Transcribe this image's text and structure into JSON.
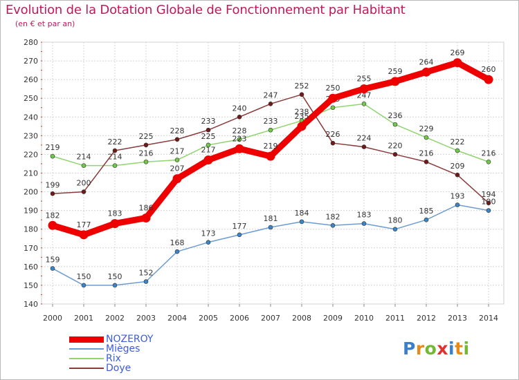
{
  "chart_data": {
    "type": "line",
    "title": "Evolution de la Dotation Globale de Fonctionnement par Habitant",
    "subtitle": "(en € et par an)",
    "x": [
      "2000",
      "2001",
      "2002",
      "2003",
      "2004",
      "2005",
      "2006",
      "2007",
      "2008",
      "2009",
      "2010",
      "2011",
      "2012",
      "2013",
      "2014"
    ],
    "yticks": [
      "140",
      "150",
      "160",
      "170",
      "180",
      "190",
      "200",
      "210",
      "220",
      "230",
      "240",
      "250",
      "260",
      "270",
      "280"
    ],
    "ylim": [
      140,
      280
    ],
    "grid": true,
    "legend_position": "bottom-left",
    "series": [
      {
        "name": "Mièges",
        "color": "#6b9bd2",
        "marker": "#3a84c8",
        "values": [
          159,
          150,
          150,
          152,
          168,
          173,
          177,
          181,
          184,
          182,
          183,
          180,
          185,
          193,
          190
        ],
        "labels": [
          "159",
          "150",
          "150",
          "152",
          "168",
          "173",
          "177",
          "181",
          "184",
          "182",
          "183",
          "180",
          "185",
          "193",
          "190"
        ]
      },
      {
        "name": "Rix",
        "color": "#90d470",
        "marker": "#72c84a",
        "values": [
          219,
          214,
          214,
          216,
          217,
          225,
          228,
          233,
          238,
          245,
          247,
          236,
          229,
          222,
          216
        ],
        "labels": [
          "219",
          "214",
          "214",
          "216",
          "217",
          "225",
          "228",
          "233",
          "238",
          "245",
          "247",
          "236",
          "229",
          "222",
          "216"
        ]
      },
      {
        "name": "Doye",
        "color": "#8b3a3a",
        "marker": "#6e1a1a",
        "values": [
          199,
          200,
          222,
          225,
          228,
          233,
          240,
          247,
          252,
          226,
          224,
          220,
          216,
          209,
          194
        ],
        "labels": [
          "199",
          "200",
          "222",
          "225",
          "228",
          "233",
          "240",
          "247",
          "252",
          "226",
          "224",
          "220",
          "216",
          "209",
          "194"
        ]
      },
      {
        "name": "NOZEROY",
        "color": "#ee0000",
        "marker": "#ee0000",
        "values": [
          182,
          177,
          183,
          186,
          207,
          217,
          223,
          219,
          235,
          250,
          255,
          259,
          264,
          269,
          260
        ],
        "labels": [
          "182",
          "177",
          "183",
          "186",
          "207",
          "217",
          "223",
          "219",
          "235",
          "250",
          "255",
          "259",
          "264",
          "269",
          "260"
        ]
      }
    ]
  },
  "legend": [
    {
      "label": "NOZEROY",
      "color": "#ee0000"
    },
    {
      "label": "Mièges",
      "color": "#6b9bd2"
    },
    {
      "label": "Rix",
      "color": "#90d470"
    },
    {
      "label": "Doye",
      "color": "#8b3a3a"
    }
  ],
  "logo": {
    "letters": [
      "P",
      "r",
      "o",
      "x",
      "i",
      "t",
      "i"
    ],
    "colors": [
      "#3a7fc8",
      "#e88a1a",
      "#72b830",
      "#e03030",
      "#3a7fc8",
      "#e88a1a",
      "#72b830"
    ]
  }
}
